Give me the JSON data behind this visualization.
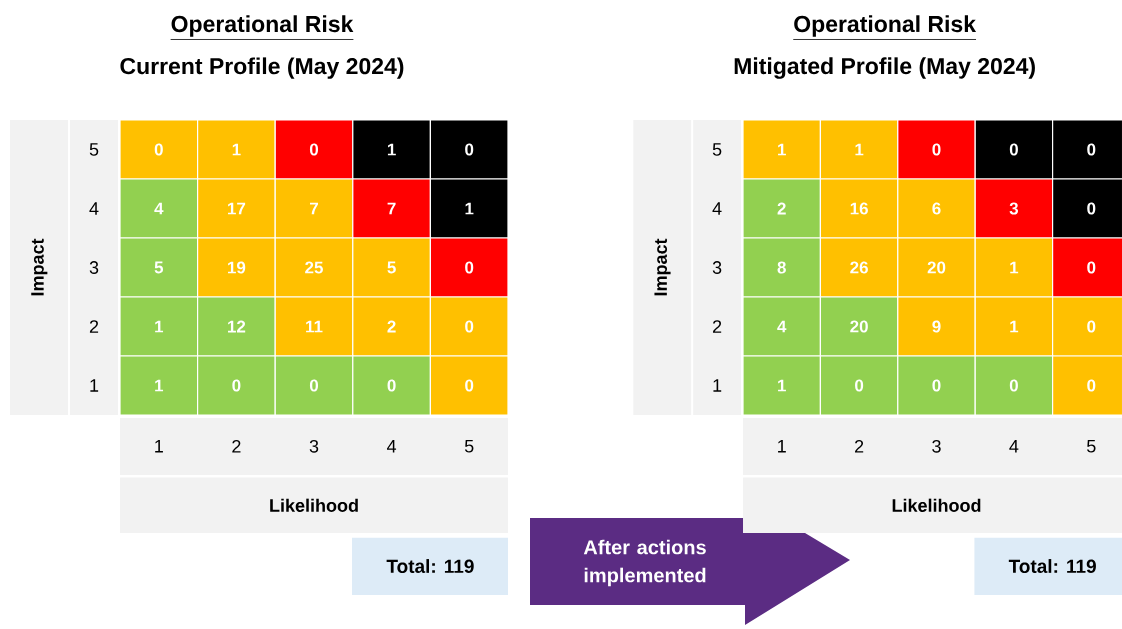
{
  "chart_data": [
    {
      "type": "heatmap",
      "title": "Operational Risk",
      "subtitle": "Current Profile (May 2024)",
      "xlabel": "Likelihood",
      "ylabel": "Impact",
      "categories": [
        "1",
        "2",
        "3",
        "4",
        "5"
      ],
      "y_categories": [
        "5",
        "4",
        "3",
        "2",
        "1"
      ],
      "cells": [
        [
          0,
          1,
          0,
          1,
          0
        ],
        [
          4,
          17,
          7,
          7,
          1
        ],
        [
          5,
          19,
          25,
          5,
          0
        ],
        [
          1,
          12,
          11,
          2,
          0
        ],
        [
          1,
          0,
          0,
          0,
          0
        ]
      ],
      "colors": [
        [
          "#ffc000",
          "#ffc000",
          "#ff0000",
          "#000000",
          "#000000"
        ],
        [
          "#92d050",
          "#ffc000",
          "#ffc000",
          "#ff0000",
          "#000000"
        ],
        [
          "#92d050",
          "#ffc000",
          "#ffc000",
          "#ffc000",
          "#ff0000"
        ],
        [
          "#92d050",
          "#92d050",
          "#ffc000",
          "#ffc000",
          "#ffc000"
        ],
        [
          "#92d050",
          "#92d050",
          "#92d050",
          "#92d050",
          "#ffc000"
        ]
      ],
      "data_labels": true,
      "annotations": [
        "Total:  119",
        "After actions implemented"
      ]
    },
    {
      "type": "heatmap",
      "title": "Operational Risk",
      "subtitle": "Mitigated Profile (May 2024)",
      "xlabel": "Likelihood",
      "ylabel": "Impact",
      "categories": [
        "1",
        "2",
        "3",
        "4",
        "5"
      ],
      "y_categories": [
        "5",
        "4",
        "3",
        "2",
        "1"
      ],
      "cells": [
        [
          1,
          1,
          0,
          0,
          0
        ],
        [
          2,
          16,
          6,
          3,
          0
        ],
        [
          8,
          26,
          20,
          1,
          0
        ],
        [
          4,
          20,
          9,
          1,
          0
        ],
        [
          1,
          0,
          0,
          0,
          0
        ]
      ],
      "colors": [
        [
          "#ffc000",
          "#ffc000",
          "#ff0000",
          "#000000",
          "#000000"
        ],
        [
          "#92d050",
          "#ffc000",
          "#ffc000",
          "#ff0000",
          "#000000"
        ],
        [
          "#92d050",
          "#ffc000",
          "#ffc000",
          "#ffc000",
          "#ff0000"
        ],
        [
          "#92d050",
          "#92d050",
          "#ffc000",
          "#ffc000",
          "#ffc000"
        ],
        [
          "#92d050",
          "#92d050",
          "#92d050",
          "#92d050",
          "#ffc000"
        ]
      ],
      "data_labels": true,
      "annotations": [
        "Total:  119"
      ]
    }
  ]
}
